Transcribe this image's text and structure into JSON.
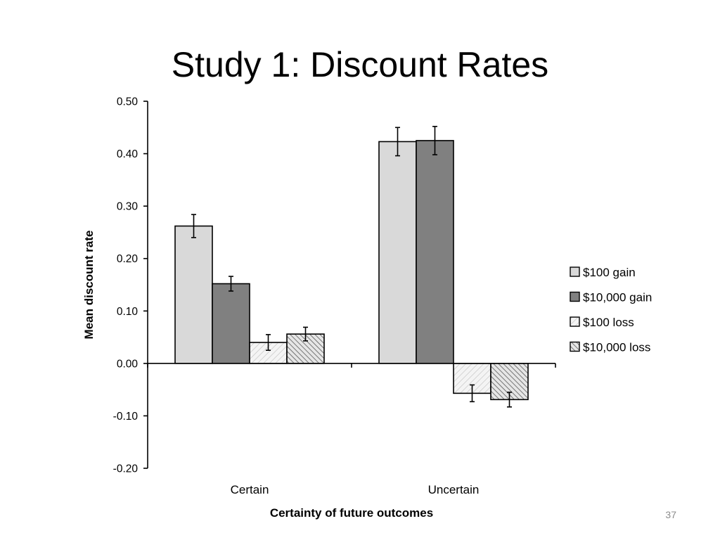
{
  "slide": {
    "title": "Study 1: Discount Rates",
    "page_number": "37"
  },
  "chart_data": {
    "type": "bar",
    "title": "",
    "xlabel": "Certainty of future outcomes",
    "ylabel": "Mean discount rate",
    "categories": [
      "Certain",
      "Uncertain"
    ],
    "ylim": [
      -0.2,
      0.5
    ],
    "yticks": [
      0.5,
      0.4,
      0.3,
      0.2,
      0.1,
      0.0,
      -0.1,
      -0.2
    ],
    "ytick_labels": [
      "0.50",
      "0.40",
      "0.30",
      "0.20",
      "0.10",
      "0.00",
      "-0.10",
      "-0.20"
    ],
    "grid": false,
    "legend_position": "right",
    "series": [
      {
        "name": "$100 gain",
        "values": [
          0.262,
          0.423
        ],
        "errors": [
          0.022,
          0.027
        ],
        "fill": "#d9d9d9",
        "pattern": "solid"
      },
      {
        "name": "$10,000 gain",
        "values": [
          0.152,
          0.425
        ],
        "errors": [
          0.014,
          0.027
        ],
        "fill": "#808080",
        "pattern": "solid"
      },
      {
        "name": "$100 loss",
        "values": [
          0.04,
          -0.057
        ],
        "errors": [
          0.015,
          0.016
        ],
        "fill": "#f2f2f2",
        "pattern": "light-hatch"
      },
      {
        "name": "$10,000 loss",
        "values": [
          0.056,
          -0.069
        ],
        "errors": [
          0.013,
          0.014
        ],
        "fill": "#d0d0d0",
        "pattern": "dark-hatch"
      }
    ]
  }
}
